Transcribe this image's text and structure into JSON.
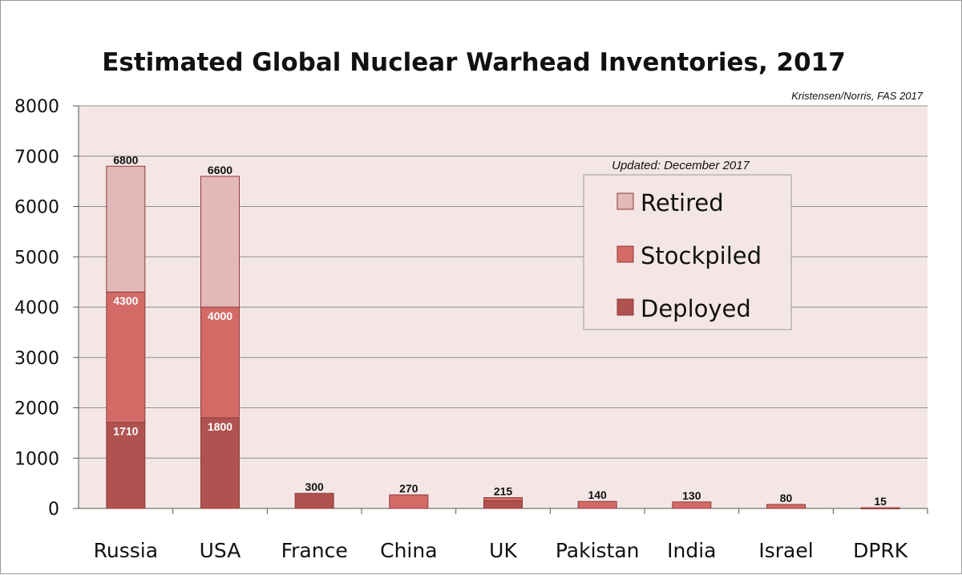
{
  "chart_data": {
    "type": "bar",
    "stacked": true,
    "title": "Estimated Global Nuclear Warhead Inventories, 2017",
    "source_note": "Kristensen/Norris, FAS 2017",
    "updated_note": "Updated: December 2017",
    "categories": [
      "Russia",
      "USA",
      "France",
      "China",
      "UK",
      "Pakistan",
      "India",
      "Israel",
      "DPRK"
    ],
    "series": [
      {
        "name": "Deployed",
        "color": "#b05250",
        "values": [
          1710,
          1800,
          300,
          0,
          150,
          0,
          0,
          0,
          0
        ]
      },
      {
        "name": "Stockpiled",
        "color": "#d26a66",
        "values": [
          2590,
          2200,
          0,
          270,
          65,
          140,
          130,
          80,
          15
        ]
      },
      {
        "name": "Retired",
        "color": "#e3b8b8",
        "values": [
          2500,
          2600,
          0,
          0,
          0,
          0,
          0,
          0,
          0
        ]
      }
    ],
    "totals": [
      6800,
      6600,
      300,
      270,
      215,
      140,
      130,
      80,
      15
    ],
    "inner_labels": [
      {
        "category": "Russia",
        "cumulative": 4300,
        "text": "4300"
      },
      {
        "category": "Russia",
        "cumulative": 1710,
        "text": "1710"
      },
      {
        "category": "USA",
        "cumulative": 4000,
        "text": "4000"
      },
      {
        "category": "USA",
        "cumulative": 1800,
        "text": "1800"
      }
    ],
    "ylim": [
      0,
      8000
    ],
    "yticks": [
      0,
      1000,
      2000,
      3000,
      4000,
      5000,
      6000,
      7000,
      8000
    ],
    "grid": true,
    "plot_background": "#f5e6e6",
    "legend_order": [
      "Retired",
      "Stockpiled",
      "Deployed"
    ],
    "legend_position": "upper-right"
  }
}
